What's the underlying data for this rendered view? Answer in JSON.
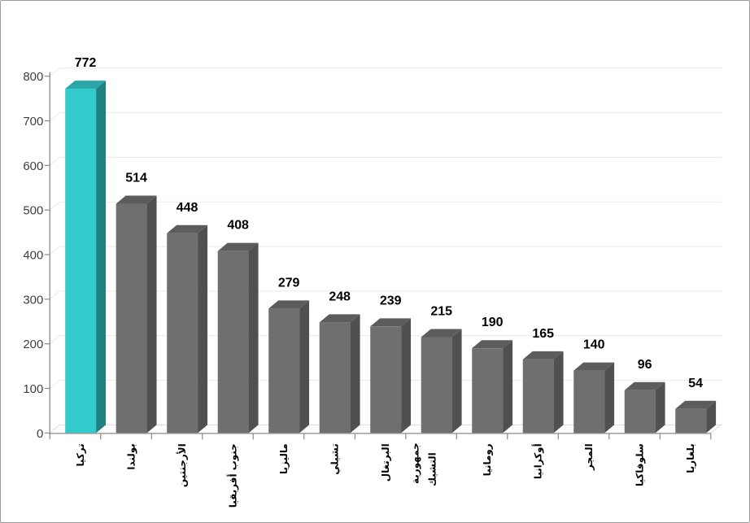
{
  "window": {
    "background": "#ffffff",
    "border_color": "#9b9b9b"
  },
  "chart_data": {
    "type": "bar",
    "style": "3d-column",
    "title": "",
    "categories": [
      "تركيا",
      "بولندا",
      "الأرجنتين",
      "جنوب أفريقيا",
      "ماليزيا",
      "تشيلي",
      "البرتغال",
      "جمهورية التشيك",
      "رومانيا",
      "أوكرانيا",
      "المجر",
      "سلوفاكيا",
      "بلغاريا"
    ],
    "category_lines": [
      [
        "تركيا"
      ],
      [
        "بولندا"
      ],
      [
        "الأرجنتين"
      ],
      [
        "جنوب أفريقيا"
      ],
      [
        "ماليزيا"
      ],
      [
        "تشيلي"
      ],
      [
        "البرتغال"
      ],
      [
        "جمهورية",
        "التشيك"
      ],
      [
        "رومانيا"
      ],
      [
        "أوكرانيا"
      ],
      [
        "المجر"
      ],
      [
        "سلوفاكيا"
      ],
      [
        "بلغاريا"
      ]
    ],
    "values": [
      772,
      514,
      448,
      408,
      279,
      248,
      239,
      215,
      190,
      165,
      140,
      96,
      54
    ],
    "value_labels": [
      "772",
      "514",
      "448",
      "408",
      "279",
      "248",
      "239",
      "215",
      "190",
      "165",
      "140",
      "96",
      "54"
    ],
    "highlight_index": 0,
    "xlabel": "",
    "ylabel": "",
    "ylim": [
      0,
      800
    ],
    "ytick_step": 100,
    "yticks": [
      "0",
      "100",
      "200",
      "300",
      "400",
      "500",
      "600",
      "700",
      "800"
    ],
    "grid": "horizontal",
    "legend": null,
    "colors": {
      "highlight_front": "#33cacb",
      "highlight_top": "#2ba6a8",
      "highlight_side": "#1f8182",
      "bar_front": "#6f6f6f",
      "bar_top": "#5c5c5c",
      "bar_side": "#505050",
      "grid_line": "#eaeaea",
      "floor_line": "#dcdcdc",
      "axis_line": "#8a8a8a",
      "ytick_label": "#3d3d3d",
      "value_label": "#000000",
      "category_label": "#000000"
    }
  }
}
